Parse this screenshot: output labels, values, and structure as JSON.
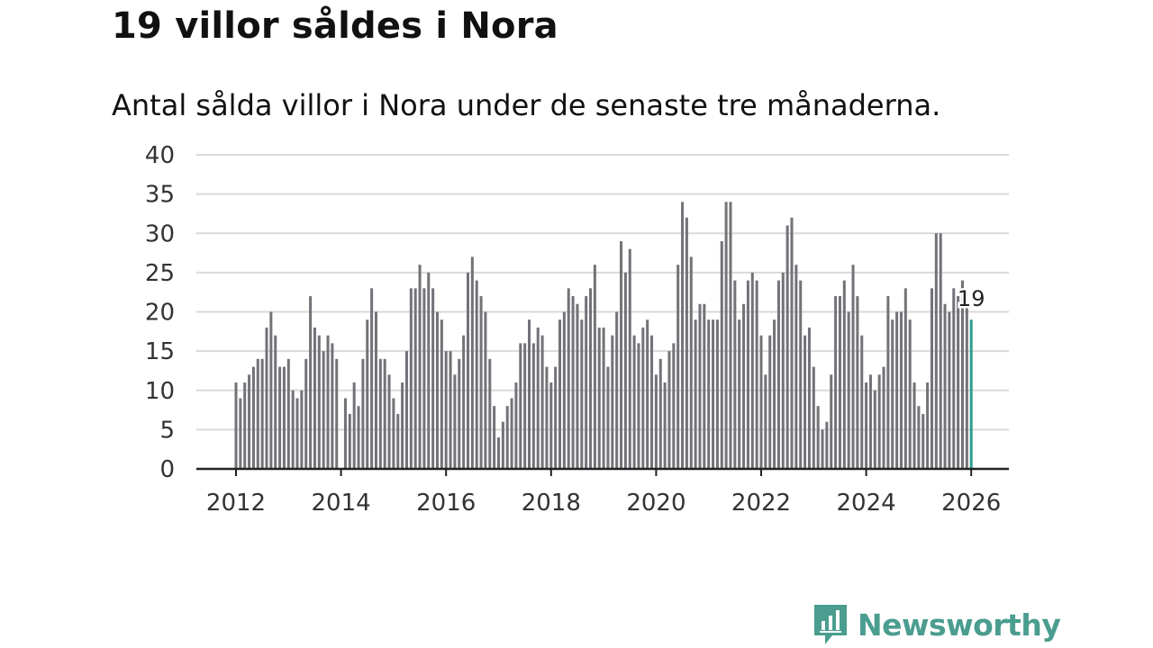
{
  "title": "19 villor såldes i Nora",
  "subtitle": "Antal sålda villor i Nora under de senaste tre månaderna.",
  "logo": {
    "name": "Newsworthy"
  },
  "colors": {
    "bar": "#737278",
    "highlight": "#2a9d8f",
    "grid": "#d9d9d9",
    "axis": "#222222",
    "brand": "#4a9d8f"
  },
  "chart_data": {
    "type": "bar",
    "title": "19 villor såldes i Nora",
    "xlabel": "",
    "ylabel": "",
    "ylim": [
      0,
      40
    ],
    "yticks": [
      "0",
      "5",
      "10",
      "15",
      "20",
      "25",
      "30",
      "35",
      "40"
    ],
    "xticks": [
      "2012",
      "2014",
      "2016",
      "2018",
      "2020",
      "2022",
      "2024",
      "2026"
    ],
    "x_start": "2012-01",
    "x_range": [
      2012,
      2026
    ],
    "values": [
      11,
      9,
      11,
      12,
      13,
      14,
      14,
      18,
      20,
      17,
      13,
      13,
      14,
      10,
      9,
      10,
      14,
      22,
      18,
      17,
      15,
      17,
      16,
      14,
      null,
      9,
      7,
      11,
      8,
      14,
      19,
      23,
      20,
      14,
      14,
      12,
      9,
      7,
      11,
      15,
      23,
      23,
      26,
      23,
      25,
      23,
      20,
      19,
      15,
      15,
      12,
      14,
      17,
      25,
      27,
      24,
      22,
      20,
      14,
      8,
      4,
      6,
      8,
      9,
      11,
      16,
      16,
      19,
      16,
      18,
      17,
      13,
      11,
      13,
      19,
      20,
      23,
      22,
      21,
      19,
      22,
      23,
      26,
      18,
      18,
      13,
      17,
      20,
      29,
      25,
      28,
      17,
      16,
      18,
      19,
      17,
      12,
      14,
      11,
      15,
      16,
      26,
      34,
      32,
      27,
      19,
      21,
      21,
      19,
      19,
      19,
      29,
      34,
      34,
      24,
      19,
      21,
      24,
      25,
      24,
      17,
      12,
      17,
      19,
      24,
      25,
      31,
      32,
      26,
      24,
      17,
      18,
      13,
      8,
      5,
      6,
      12,
      22,
      22,
      24,
      20,
      26,
      22,
      17,
      11,
      12,
      10,
      12,
      13,
      22,
      19,
      20,
      20,
      23,
      19,
      11,
      8,
      7,
      11,
      23,
      30,
      30,
      21,
      20,
      23,
      22,
      24,
      21,
      19
    ],
    "highlight": {
      "label": "19",
      "value": 19
    }
  }
}
